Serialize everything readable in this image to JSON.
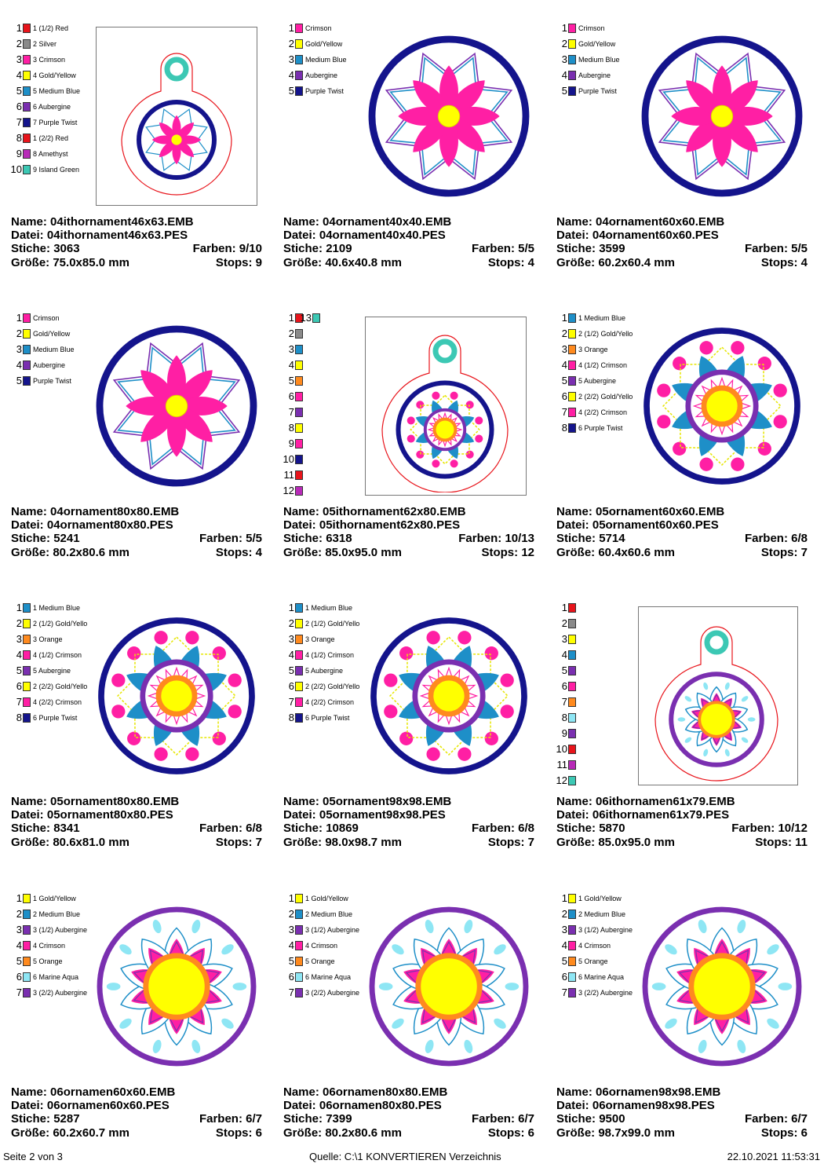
{
  "labels": {
    "name": "Name:",
    "datei": "Datei:",
    "stiche": "Stiche:",
    "farben": "Farben:",
    "groesse": "Größe:",
    "stops": "Stops:"
  },
  "colors": {
    "red": "#e8141b",
    "silver": "#8a8a8a",
    "crimson": "#ff1fa4",
    "gold": "#ffff00",
    "mblue": "#1e8fc8",
    "aubergine": "#7a2fb0",
    "purple_twist": "#14148c",
    "amethyst": "#b82ab8",
    "island_green": "#3cc8b4",
    "orange": "#ff8a1e",
    "marine_aqua": "#8ee6f4"
  },
  "designs": [
    {
      "name": "04ithornament46x63.EMB",
      "file": "04ithornament46x63.PES",
      "stitches": "3063",
      "colors_count": "9/10",
      "size": "75.0x85.0 mm",
      "stops": "9",
      "palette": [
        {
          "n": "1",
          "c": "#e8141b",
          "label": "1 (1/2) Red"
        },
        {
          "n": "2",
          "c": "#8a8a8a",
          "label": "2 Silver"
        },
        {
          "n": "3",
          "c": "#ff1fa4",
          "label": "3 Crimson"
        },
        {
          "n": "4",
          "c": "#ffff00",
          "label": "4 Gold/Yellow"
        },
        {
          "n": "5",
          "c": "#1e8fc8",
          "label": "5 Medium Blue"
        },
        {
          "n": "6",
          "c": "#7a2fb0",
          "label": "6 Aubergine"
        },
        {
          "n": "7",
          "c": "#14148c",
          "label": "7 Purple Twist"
        },
        {
          "n": "8",
          "c": "#e8141b",
          "label": "1 (2/2) Red"
        },
        {
          "n": "9",
          "c": "#b82ab8",
          "label": "8 Amethyst"
        },
        {
          "n": "10",
          "c": "#3cc8b4",
          "label": "9 Island Green"
        }
      ]
    },
    {
      "name": "04ornament40x40.EMB",
      "file": "04ornament40x40.PES",
      "stitches": "2109",
      "colors_count": "5/5",
      "size": "40.6x40.8 mm",
      "stops": "4",
      "palette": [
        {
          "n": "1",
          "c": "#ff1fa4",
          "label": "Crimson"
        },
        {
          "n": "2",
          "c": "#ffff00",
          "label": "Gold/Yellow"
        },
        {
          "n": "3",
          "c": "#1e8fc8",
          "label": "Medium Blue"
        },
        {
          "n": "4",
          "c": "#7a2fb0",
          "label": "Aubergine"
        },
        {
          "n": "5",
          "c": "#14148c",
          "label": "Purple Twist"
        }
      ]
    },
    {
      "name": "04ornament60x60.EMB",
      "file": "04ornament60x60.PES",
      "stitches": "3599",
      "colors_count": "5/5",
      "size": "60.2x60.4 mm",
      "stops": "4",
      "palette": [
        {
          "n": "1",
          "c": "#ff1fa4",
          "label": "Crimson"
        },
        {
          "n": "2",
          "c": "#ffff00",
          "label": "Gold/Yellow"
        },
        {
          "n": "3",
          "c": "#1e8fc8",
          "label": "Medium Blue"
        },
        {
          "n": "4",
          "c": "#7a2fb0",
          "label": "Aubergine"
        },
        {
          "n": "5",
          "c": "#14148c",
          "label": "Purple Twist"
        }
      ]
    },
    {
      "name": "04ornament80x80.EMB",
      "file": "04ornament80x80.PES",
      "stitches": "5241",
      "colors_count": "5/5",
      "size": "80.2x80.6 mm",
      "stops": "4",
      "palette": [
        {
          "n": "1",
          "c": "#ff1fa4",
          "label": "Crimson"
        },
        {
          "n": "2",
          "c": "#ffff00",
          "label": "Gold/Yellow"
        },
        {
          "n": "3",
          "c": "#1e8fc8",
          "label": "Medium Blue"
        },
        {
          "n": "4",
          "c": "#7a2fb0",
          "label": "Aubergine"
        },
        {
          "n": "5",
          "c": "#14148c",
          "label": "Purple Twist"
        }
      ]
    },
    {
      "name": "05ithornament62x80.EMB",
      "file": "05ithornament62x80.PES",
      "stitches": "6318",
      "colors_count": "10/13",
      "size": "85.0x95.0 mm",
      "stops": "12",
      "palette": [
        {
          "n": "1",
          "c": "#e8141b",
          "label": ""
        },
        {
          "n": "2",
          "c": "#8a8a8a",
          "label": ""
        },
        {
          "n": "3",
          "c": "#1e8fc8",
          "label": ""
        },
        {
          "n": "4",
          "c": "#ffff00",
          "label": ""
        },
        {
          "n": "5",
          "c": "#ff8a1e",
          "label": ""
        },
        {
          "n": "6",
          "c": "#ff1fa4",
          "label": ""
        },
        {
          "n": "7",
          "c": "#7a2fb0",
          "label": ""
        },
        {
          "n": "8",
          "c": "#ffff00",
          "label": ""
        },
        {
          "n": "9",
          "c": "#ff1fa4",
          "label": ""
        },
        {
          "n": "10",
          "c": "#14148c",
          "label": ""
        },
        {
          "n": "11",
          "c": "#e8141b",
          "label": ""
        },
        {
          "n": "12",
          "c": "#b82ab8",
          "label": ""
        },
        {
          "n": "13",
          "c": "#3cc8b4",
          "label": ""
        }
      ]
    },
    {
      "name": "05ornament60x60.EMB",
      "file": "05ornament60x60.PES",
      "stitches": "5714",
      "colors_count": "6/8",
      "size": "60.4x60.6 mm",
      "stops": "7",
      "palette": [
        {
          "n": "1",
          "c": "#1e8fc8",
          "label": "1 Medium Blue"
        },
        {
          "n": "2",
          "c": "#ffff00",
          "label": "2 (1/2) Gold/Yello"
        },
        {
          "n": "3",
          "c": "#ff8a1e",
          "label": "3 Orange"
        },
        {
          "n": "4",
          "c": "#ff1fa4",
          "label": "4 (1/2) Crimson"
        },
        {
          "n": "5",
          "c": "#7a2fb0",
          "label": "5 Aubergine"
        },
        {
          "n": "6",
          "c": "#ffff00",
          "label": "2 (2/2) Gold/Yello"
        },
        {
          "n": "7",
          "c": "#ff1fa4",
          "label": "4 (2/2) Crimson"
        },
        {
          "n": "8",
          "c": "#14148c",
          "label": "6 Purple Twist"
        }
      ]
    },
    {
      "name": "05ornament80x80.EMB",
      "file": "05ornament80x80.PES",
      "stitches": "8341",
      "colors_count": "6/8",
      "size": "80.6x81.0 mm",
      "stops": "7",
      "palette": [
        {
          "n": "1",
          "c": "#1e8fc8",
          "label": "1 Medium Blue"
        },
        {
          "n": "2",
          "c": "#ffff00",
          "label": "2 (1/2) Gold/Yello"
        },
        {
          "n": "3",
          "c": "#ff8a1e",
          "label": "3 Orange"
        },
        {
          "n": "4",
          "c": "#ff1fa4",
          "label": "4 (1/2) Crimson"
        },
        {
          "n": "5",
          "c": "#7a2fb0",
          "label": "5 Aubergine"
        },
        {
          "n": "6",
          "c": "#ffff00",
          "label": "2 (2/2) Gold/Yello"
        },
        {
          "n": "7",
          "c": "#ff1fa4",
          "label": "4 (2/2) Crimson"
        },
        {
          "n": "8",
          "c": "#14148c",
          "label": "6 Purple Twist"
        }
      ]
    },
    {
      "name": "05ornament98x98.EMB",
      "file": "05ornament98x98.PES",
      "stitches": "10869",
      "colors_count": "6/8",
      "size": "98.0x98.7 mm",
      "stops": "7",
      "palette": [
        {
          "n": "1",
          "c": "#1e8fc8",
          "label": "1 Medium Blue"
        },
        {
          "n": "2",
          "c": "#ffff00",
          "label": "2 (1/2) Gold/Yello"
        },
        {
          "n": "3",
          "c": "#ff8a1e",
          "label": "3 Orange"
        },
        {
          "n": "4",
          "c": "#ff1fa4",
          "label": "4 (1/2) Crimson"
        },
        {
          "n": "5",
          "c": "#7a2fb0",
          "label": "5 Aubergine"
        },
        {
          "n": "6",
          "c": "#ffff00",
          "label": "2 (2/2) Gold/Yello"
        },
        {
          "n": "7",
          "c": "#ff1fa4",
          "label": "4 (2/2) Crimson"
        },
        {
          "n": "8",
          "c": "#14148c",
          "label": "6 Purple Twist"
        }
      ]
    },
    {
      "name": "06ithornamen61x79.EMB",
      "file": "06ithornamen61x79.PES",
      "stitches": "5870",
      "colors_count": "10/12",
      "size": "85.0x95.0 mm",
      "stops": "11",
      "palette": [
        {
          "n": "1",
          "c": "#e8141b",
          "label": ""
        },
        {
          "n": "2",
          "c": "#8a8a8a",
          "label": ""
        },
        {
          "n": "3",
          "c": "#ffff00",
          "label": ""
        },
        {
          "n": "4",
          "c": "#1e8fc8",
          "label": ""
        },
        {
          "n": "5",
          "c": "#7a2fb0",
          "label": ""
        },
        {
          "n": "6",
          "c": "#ff1fa4",
          "label": ""
        },
        {
          "n": "7",
          "c": "#ff8a1e",
          "label": ""
        },
        {
          "n": "8",
          "c": "#8ee6f4",
          "label": ""
        },
        {
          "n": "9",
          "c": "#7a2fb0",
          "label": ""
        },
        {
          "n": "10",
          "c": "#e8141b",
          "label": ""
        },
        {
          "n": "11",
          "c": "#b82ab8",
          "label": ""
        },
        {
          "n": "12",
          "c": "#3cc8b4",
          "label": ""
        }
      ]
    },
    {
      "name": "06ornamen60x60.EMB",
      "file": "06ornamen60x60.PES",
      "stitches": "5287",
      "colors_count": "6/7",
      "size": "60.2x60.7 mm",
      "stops": "6",
      "palette": [
        {
          "n": "1",
          "c": "#ffff00",
          "label": "1 Gold/Yellow"
        },
        {
          "n": "2",
          "c": "#1e8fc8",
          "label": "2 Medium Blue"
        },
        {
          "n": "3",
          "c": "#7a2fb0",
          "label": "3 (1/2) Aubergine"
        },
        {
          "n": "4",
          "c": "#ff1fa4",
          "label": "4 Crimson"
        },
        {
          "n": "5",
          "c": "#ff8a1e",
          "label": "5 Orange"
        },
        {
          "n": "6",
          "c": "#8ee6f4",
          "label": "6 Marine Aqua"
        },
        {
          "n": "7",
          "c": "#7a2fb0",
          "label": "3 (2/2) Aubergine"
        }
      ]
    },
    {
      "name": "06ornamen80x80.EMB",
      "file": "06ornamen80x80.PES",
      "stitches": "7399",
      "colors_count": "6/7",
      "size": "80.2x80.6 mm",
      "stops": "6",
      "palette": [
        {
          "n": "1",
          "c": "#ffff00",
          "label": "1 Gold/Yellow"
        },
        {
          "n": "2",
          "c": "#1e8fc8",
          "label": "2 Medium Blue"
        },
        {
          "n": "3",
          "c": "#7a2fb0",
          "label": "3 (1/2) Aubergine"
        },
        {
          "n": "4",
          "c": "#ff1fa4",
          "label": "4 Crimson"
        },
        {
          "n": "5",
          "c": "#ff8a1e",
          "label": "5 Orange"
        },
        {
          "n": "6",
          "c": "#8ee6f4",
          "label": "6 Marine Aqua"
        },
        {
          "n": "7",
          "c": "#7a2fb0",
          "label": "3 (2/2) Aubergine"
        }
      ]
    },
    {
      "name": "06ornamen98x98.EMB",
      "file": "06ornamen98x98.PES",
      "stitches": "9500",
      "colors_count": "6/7",
      "size": "98.7x99.0 mm",
      "stops": "6",
      "palette": [
        {
          "n": "1",
          "c": "#ffff00",
          "label": "1 Gold/Yellow"
        },
        {
          "n": "2",
          "c": "#1e8fc8",
          "label": "2 Medium Blue"
        },
        {
          "n": "3",
          "c": "#7a2fb0",
          "label": "3 (1/2) Aubergine"
        },
        {
          "n": "4",
          "c": "#ff1fa4",
          "label": "4 Crimson"
        },
        {
          "n": "5",
          "c": "#ff8a1e",
          "label": "5 Orange"
        },
        {
          "n": "6",
          "c": "#8ee6f4",
          "label": "6 Marine Aqua"
        },
        {
          "n": "7",
          "c": "#7a2fb0",
          "label": "3 (2/2) Aubergine"
        }
      ]
    }
  ],
  "footer": {
    "page": "Seite 2 von 3",
    "source": "Quelle: C:\\1 KONVERTIEREN Verzeichnis",
    "timestamp": "22.10.2021 11:53:31"
  }
}
